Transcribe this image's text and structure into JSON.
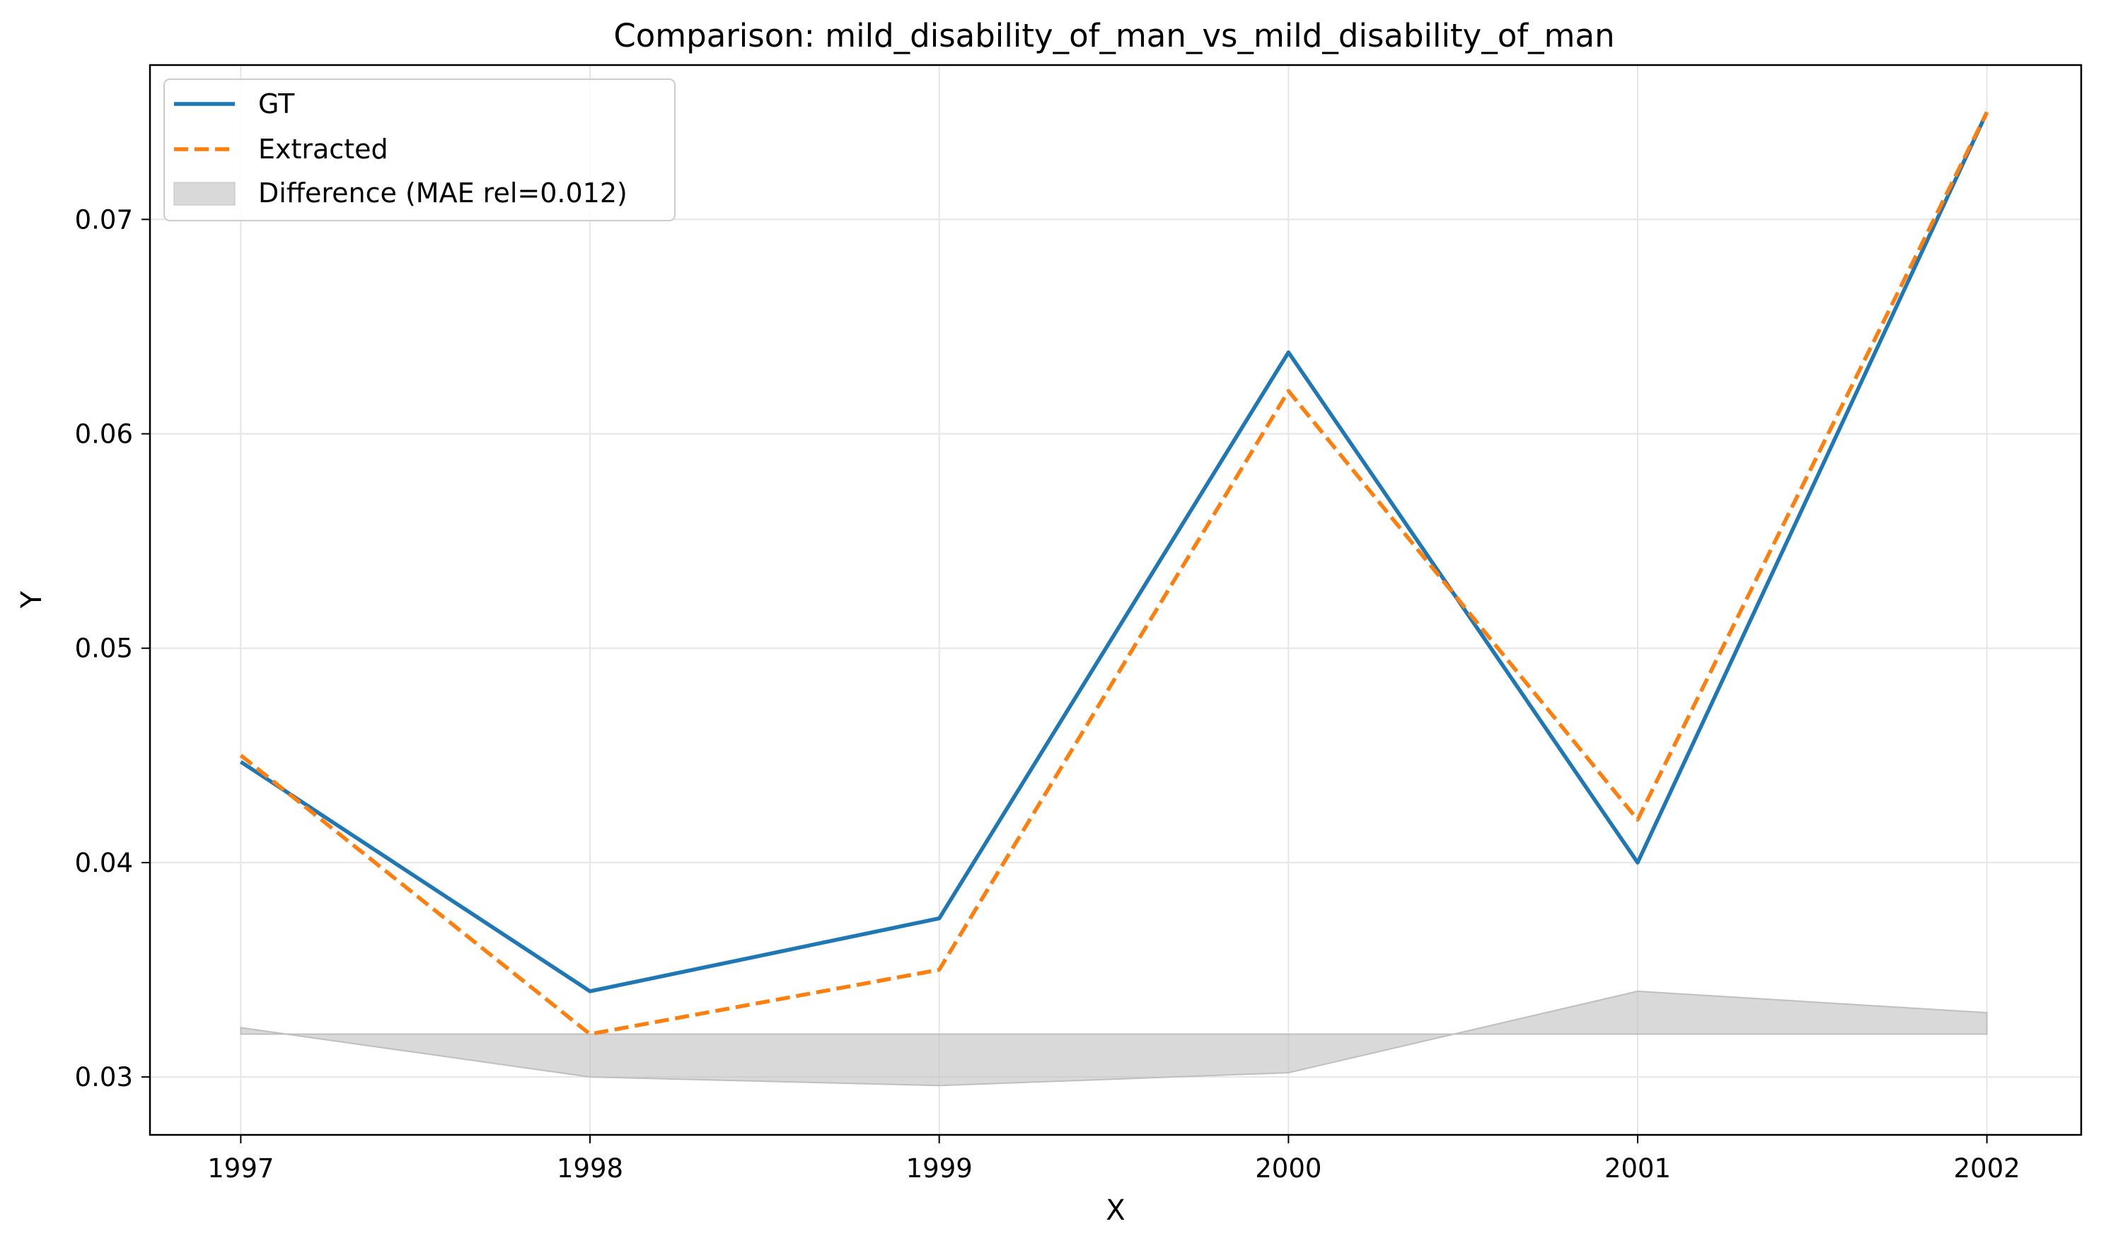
{
  "chart_data": {
    "type": "line",
    "title": "Comparison: mild_disability_of_man_vs_mild_disability_of_man",
    "xlabel": "X",
    "ylabel": "Y",
    "x": [
      1997,
      1998,
      1999,
      2000,
      2001,
      2002
    ],
    "x_tick_labels": [
      "1997",
      "1998",
      "1999",
      "2000",
      "2001",
      "2002"
    ],
    "y_ticks": [
      0.03,
      0.04,
      0.05,
      0.06,
      0.07
    ],
    "y_tick_labels": [
      "0.03",
      "0.04",
      "0.05",
      "0.06",
      "0.07"
    ],
    "xlim": [
      1996.74,
      2002.27
    ],
    "ylim": [
      0.0273,
      0.0772
    ],
    "grid": true,
    "legend_position": "top-left",
    "series": [
      {
        "name": "GT",
        "values": [
          0.0447,
          0.034,
          0.0374,
          0.0638,
          0.04,
          0.075
        ],
        "color": "#1f77b4",
        "style": "solid"
      },
      {
        "name": "Extracted",
        "values": [
          0.045,
          0.032,
          0.035,
          0.062,
          0.042,
          0.075
        ],
        "color": "#ff7f0e",
        "style": "dashed"
      }
    ],
    "difference": {
      "name": "Difference (MAE rel=0.012)",
      "baseline": 0.032,
      "values": [
        0.0323,
        0.03,
        0.0296,
        0.0302,
        0.034,
        0.033
      ],
      "color": "#bfbfbf"
    }
  }
}
